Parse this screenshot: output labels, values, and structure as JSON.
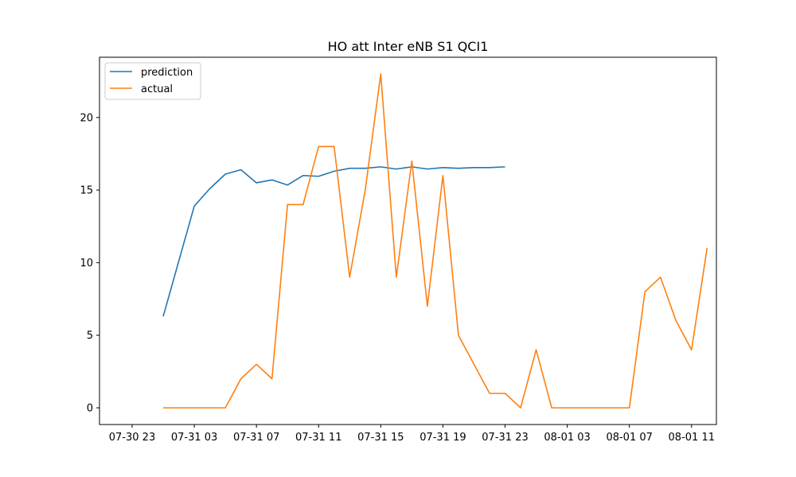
{
  "chart_data": {
    "type": "line",
    "title": "HO att Inter eNB S1 QCI1",
    "xlabel": "",
    "ylabel": "",
    "x_tick_labels": [
      "07-30 23",
      "07-31 03",
      "07-31 07",
      "07-31 11",
      "07-31 15",
      "07-31 19",
      "07-31 23",
      "08-01 03",
      "08-01 07",
      "08-01 11"
    ],
    "x_tick_hours": [
      0,
      4,
      8,
      12,
      16,
      20,
      24,
      28,
      32,
      36
    ],
    "y_ticks": [
      0,
      5,
      10,
      15,
      20
    ],
    "xlim_hours": [
      -2.1,
      37.6
    ],
    "ylim": [
      -1.15,
      24.15
    ],
    "grid": false,
    "legend_position": "top-left",
    "series": [
      {
        "name": "prediction",
        "color": "#1f77b4",
        "x_hours": [
          2,
          4,
          5,
          6,
          7,
          8,
          9,
          10,
          11,
          12,
          13,
          14,
          15,
          16,
          17,
          18,
          19,
          20,
          21,
          22,
          23,
          24
        ],
        "values": [
          6.3,
          13.9,
          15.1,
          16.1,
          16.4,
          15.5,
          15.7,
          15.35,
          16.0,
          15.95,
          16.3,
          16.5,
          16.5,
          16.6,
          16.45,
          16.6,
          16.45,
          16.55,
          16.5,
          16.55,
          16.55,
          16.6
        ]
      },
      {
        "name": "actual",
        "color": "#ff7f0e",
        "x_hours": [
          2,
          3,
          4,
          5,
          6,
          7,
          8,
          9,
          10,
          11,
          12,
          13,
          14,
          15,
          16,
          17,
          18,
          19,
          20,
          21,
          22,
          23,
          24,
          25,
          26,
          27,
          28,
          29,
          30,
          31,
          32,
          33,
          34,
          35,
          36,
          37
        ],
        "values": [
          0,
          0,
          0,
          0,
          0,
          2,
          3,
          2,
          14,
          14,
          18,
          18,
          9,
          15,
          23,
          9,
          17,
          7,
          16,
          5,
          3,
          1,
          1,
          0,
          4,
          0,
          0,
          0,
          0,
          0,
          0,
          8,
          9,
          6,
          4,
          11
        ]
      }
    ]
  }
}
